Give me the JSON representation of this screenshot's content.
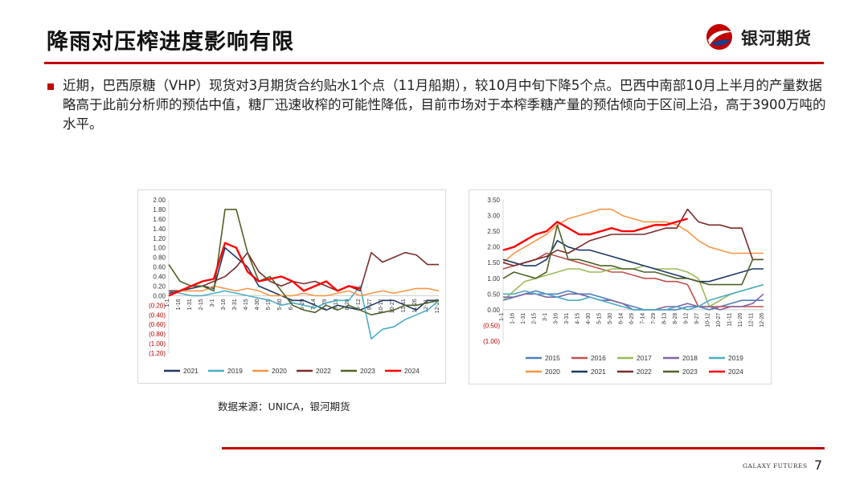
{
  "header": {
    "title": "降雨对压榨进度影响有限",
    "logo_text": "银河期货"
  },
  "body": {
    "paragraph": "近期，巴西原糖（VHP）现货对3月期货合约贴水1个点（11月船期），较10月中旬下降5个点。巴西中南部10月上半月的产量数据略高于此前分析师的预估中值，糖厂迅速收榨的可能性降低，目前市场对于本榨季糖产量的预估倾向于区间上沿，高于3900万吨的水平。"
  },
  "source": "数据来源：UNICA，银河期货",
  "footer": {
    "brand": "GALAXY FUTURES",
    "page": "7"
  },
  "colors": {
    "accent": "#c00000",
    "s2015": "#4f81bd",
    "s2016": "#c0504d",
    "s2017": "#9bbb59",
    "s2018": "#8064a2",
    "s2019": "#4bacc6",
    "s2020": "#f79646",
    "s2021": "#1f3864",
    "s2022": "#7b2b2b",
    "s2023": "#4f6228",
    "s2024": "#ff0000"
  },
  "chart_data": [
    {
      "type": "line",
      "title": "",
      "ylim": [
        -1.2,
        2.0
      ],
      "y_ticks": [
        "2.00",
        "1.80",
        "1.60",
        "1.40",
        "1.20",
        "1.00",
        "0.80",
        "0.60",
        "0.40",
        "0.20",
        "0.00",
        "(0.20)",
        "(0.40)",
        "(0.60)",
        "(0.80)",
        "(1.00)",
        "(1.20)"
      ],
      "x_ticks": [
        "1-1",
        "1-16",
        "1-31",
        "2-15",
        "3-1",
        "3-16",
        "3-31",
        "4-15",
        "4-30",
        "5-15",
        "5-30",
        "6-14",
        "6-29",
        "7-14",
        "7-29",
        "8-13",
        "8-28",
        "9-12",
        "9-27",
        "10-12",
        "10-27",
        "11-11",
        "11-26",
        "12-11",
        "12-26"
      ],
      "legend_position": "bottom",
      "series": [
        {
          "name": "2021",
          "color": "#1f3864",
          "values": [
            0.05,
            0.1,
            0.15,
            0.2,
            0.15,
            1.0,
            0.8,
            0.6,
            0.2,
            0.1,
            0.0,
            -0.1,
            -0.1,
            -0.2,
            -0.3,
            -0.2,
            -0.25,
            -0.3,
            -0.2,
            -0.1,
            -0.1,
            -0.2,
            -0.3,
            -0.1,
            -0.1
          ]
        },
        {
          "name": "2019",
          "color": "#4bacc6",
          "values": [
            0.1,
            0.05,
            0.0,
            0.0,
            0.05,
            0.1,
            0.05,
            0.0,
            -0.05,
            -0.1,
            -0.2,
            -0.15,
            -0.2,
            -0.25,
            -0.15,
            -0.1,
            -0.1,
            0.2,
            -0.9,
            -0.7,
            -0.65,
            -0.5,
            -0.4,
            -0.3,
            -0.1
          ]
        },
        {
          "name": "2020",
          "color": "#f79646",
          "values": [
            0.1,
            0.1,
            0.1,
            0.1,
            0.2,
            0.15,
            0.1,
            0.15,
            0.1,
            0.0,
            0.0,
            0.0,
            0.05,
            0.0,
            0.0,
            0.05,
            0.1,
            0.0,
            0.05,
            0.1,
            0.05,
            0.1,
            0.15,
            0.15,
            0.1
          ]
        },
        {
          "name": "2022",
          "color": "#7b2b2b",
          "values": [
            0.1,
            0.1,
            0.2,
            0.2,
            0.3,
            0.4,
            0.6,
            0.9,
            0.5,
            0.3,
            0.2,
            0.3,
            0.25,
            0.3,
            0.2,
            0.1,
            0.2,
            0.1,
            0.9,
            0.7,
            0.8,
            0.9,
            0.85,
            0.65,
            0.65
          ]
        },
        {
          "name": "2023",
          "color": "#4f6228",
          "values": [
            0.65,
            0.3,
            0.2,
            0.2,
            0.1,
            1.8,
            1.8,
            0.9,
            0.3,
            0.4,
            0.1,
            -0.2,
            -0.3,
            -0.35,
            -0.2,
            -0.3,
            -0.2,
            -0.3,
            -0.4,
            -0.35,
            -0.3,
            -0.2,
            -0.2,
            -0.15,
            -0.1
          ]
        },
        {
          "name": "2024",
          "color": "#ff0000",
          "values": [
            0.0,
            0.1,
            0.2,
            0.3,
            0.35,
            1.1,
            1.0,
            0.5,
            0.3,
            0.35,
            0.4,
            0.3,
            0.1,
            0.2,
            0.3,
            0.1,
            0.2,
            0.15
          ]
        }
      ]
    },
    {
      "type": "line",
      "title": "",
      "ylim": [
        -1.0,
        3.5
      ],
      "y_ticks": [
        "3.50",
        "3.00",
        "2.50",
        "2.00",
        "1.50",
        "1.00",
        "0.50",
        "0.00",
        "(0.50)",
        "(1.00)"
      ],
      "x_ticks": [
        "1-1",
        "1-16",
        "1-31",
        "2-15",
        "3-1",
        "3-16",
        "3-31",
        "4-15",
        "4-30",
        "5-15",
        "5-30",
        "6-14",
        "6-29",
        "7-14",
        "7-29",
        "8-13",
        "8-28",
        "9-12",
        "9-27",
        "10-12",
        "10-27",
        "11-11",
        "11-26",
        "12-11",
        "12-26"
      ],
      "legend_position": "bottom",
      "series": [
        {
          "name": "2015",
          "color": "#4f81bd",
          "values": [
            0.3,
            0.4,
            0.5,
            0.6,
            0.5,
            0.5,
            0.6,
            0.5,
            0.5,
            0.4,
            0.3,
            0.2,
            0.1,
            0.0,
            0.0,
            0.0,
            0.0,
            0.1,
            0.1,
            0.0,
            0.1,
            0.2,
            0.3,
            0.3,
            0.3
          ]
        },
        {
          "name": "2016",
          "color": "#c0504d",
          "values": [
            1.3,
            1.4,
            1.5,
            1.6,
            1.8,
            1.7,
            1.6,
            1.5,
            1.4,
            1.3,
            1.2,
            1.2,
            1.1,
            1.0,
            1.0,
            0.9,
            0.9,
            0.8,
            0.1,
            0.1,
            0.1,
            0.1,
            0.1,
            0.1,
            0.1
          ]
        },
        {
          "name": "2017",
          "color": "#9bbb59",
          "values": [
            0.3,
            0.6,
            0.9,
            1.0,
            1.1,
            1.2,
            1.3,
            1.3,
            1.2,
            1.2,
            1.3,
            1.3,
            1.3,
            1.4,
            1.3,
            1.3,
            1.3,
            1.2,
            1.0,
            0.1,
            0.3,
            0.5,
            0.6,
            0.7,
            0.8
          ]
        },
        {
          "name": "2018",
          "color": "#8064a2",
          "values": [
            0.4,
            0.4,
            0.5,
            0.5,
            0.4,
            0.4,
            0.5,
            0.5,
            0.4,
            0.3,
            0.3,
            0.2,
            0.0,
            0.0,
            0.0,
            0.1,
            0.1,
            0.2,
            0.1,
            0.1,
            0.0,
            0.1,
            0.1,
            0.2,
            0.5
          ]
        },
        {
          "name": "2019",
          "color": "#4bacc6",
          "values": [
            0.5,
            0.5,
            0.6,
            0.5,
            0.5,
            0.4,
            0.3,
            0.3,
            0.4,
            0.3,
            0.2,
            0.1,
            0.0,
            0.0,
            0.0,
            0.0,
            0.1,
            0.0,
            0.1,
            0.3,
            0.4,
            0.5,
            0.6,
            0.7,
            0.8
          ]
        },
        {
          "name": "2020",
          "color": "#f79646",
          "values": [
            1.5,
            1.8,
            2.0,
            2.2,
            2.4,
            2.7,
            2.9,
            3.0,
            3.1,
            3.2,
            3.2,
            3.0,
            2.9,
            2.8,
            2.8,
            2.8,
            2.7,
            2.5,
            2.2,
            2.0,
            1.9,
            1.8,
            1.8,
            1.8,
            1.8
          ]
        },
        {
          "name": "2021",
          "color": "#1f3864",
          "values": [
            1.6,
            1.5,
            1.4,
            1.4,
            1.6,
            2.2,
            2.0,
            1.9,
            1.9,
            1.8,
            1.7,
            1.6,
            1.5,
            1.4,
            1.3,
            1.2,
            1.1,
            1.0,
            0.9,
            0.9,
            1.0,
            1.1,
            1.2,
            1.3,
            1.3
          ]
        },
        {
          "name": "2022",
          "color": "#7b2b2b",
          "values": [
            1.5,
            1.4,
            1.5,
            1.6,
            1.7,
            1.9,
            1.8,
            2.0,
            2.2,
            2.3,
            2.4,
            2.4,
            2.4,
            2.4,
            2.5,
            2.6,
            2.6,
            3.2,
            2.8,
            2.7,
            2.7,
            2.6,
            2.6,
            1.6,
            1.6
          ]
        },
        {
          "name": "2023",
          "color": "#4f6228",
          "values": [
            1.0,
            1.2,
            1.1,
            1.0,
            1.2,
            2.7,
            1.6,
            1.6,
            1.5,
            1.4,
            1.4,
            1.3,
            1.3,
            1.2,
            1.2,
            1.1,
            1.0,
            1.0,
            0.9,
            0.8,
            0.8,
            0.8,
            0.8,
            1.6,
            1.6
          ]
        },
        {
          "name": "2024",
          "color": "#ff0000",
          "values": [
            1.9,
            2.0,
            2.2,
            2.4,
            2.5,
            2.8,
            2.6,
            2.4,
            2.4,
            2.5,
            2.6,
            2.5,
            2.5,
            2.6,
            2.7,
            2.7,
            2.8,
            2.9
          ]
        }
      ]
    }
  ]
}
